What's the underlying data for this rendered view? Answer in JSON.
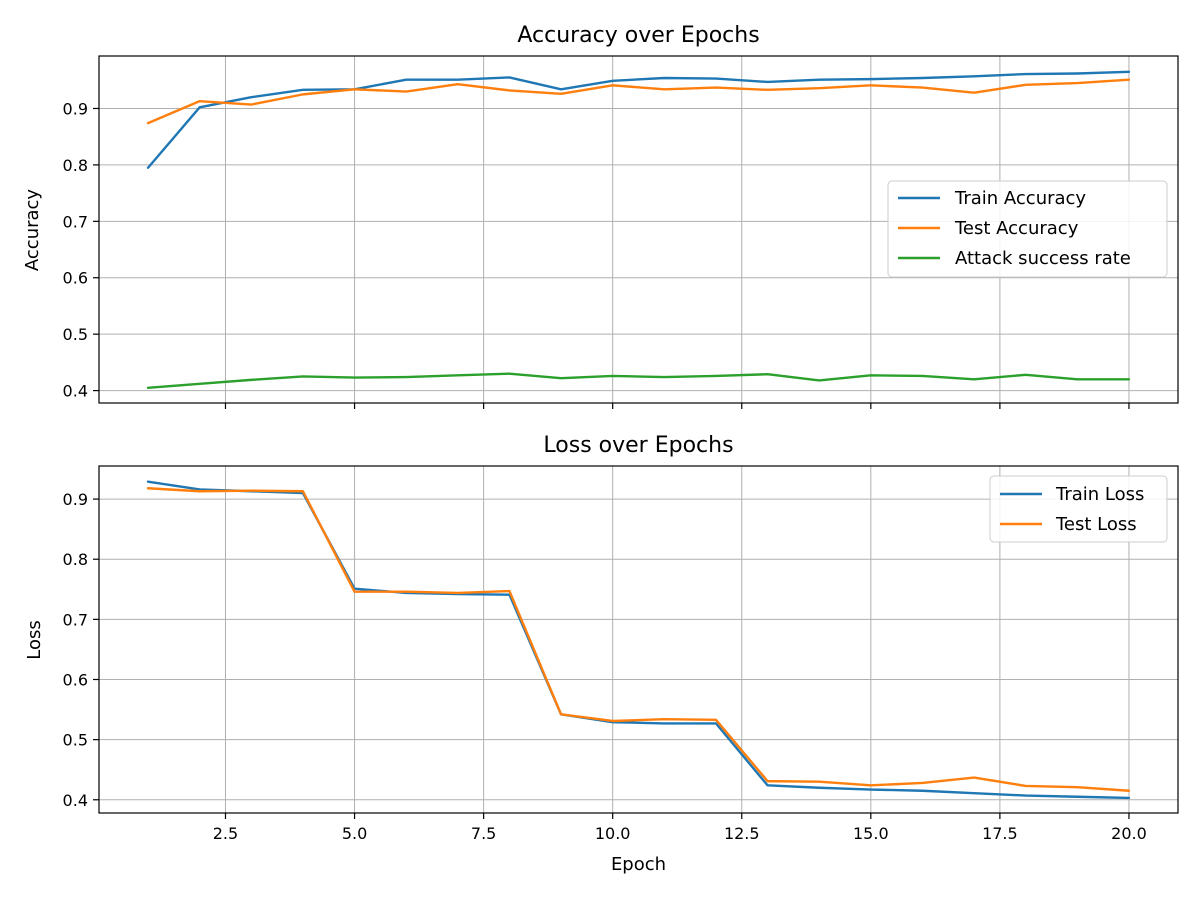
{
  "chart_data": [
    {
      "type": "line",
      "title": "Accuracy over Epochs",
      "xlabel": "",
      "ylabel": "Accuracy",
      "xlim": [
        0.05,
        20.95
      ],
      "ylim": [
        0.378,
        0.993
      ],
      "xticks": [
        2.5,
        5.0,
        7.5,
        10.0,
        12.5,
        15.0,
        17.5,
        20.0
      ],
      "xtick_labels": [
        "",
        "",
        "",
        "",
        "",
        "",
        "",
        ""
      ],
      "yticks": [
        0.4,
        0.5,
        0.6,
        0.7,
        0.8,
        0.9
      ],
      "ytick_labels": [
        "0.4",
        "0.5",
        "0.6",
        "0.7",
        "0.8",
        "0.9"
      ],
      "grid": true,
      "legend": "center-right",
      "x": [
        1,
        2,
        3,
        4,
        5,
        6,
        7,
        8,
        9,
        10,
        11,
        12,
        13,
        14,
        15,
        16,
        17,
        18,
        19,
        20
      ],
      "series": [
        {
          "name": "Train Accuracy",
          "color": "#1f77b4",
          "values": [
            0.795,
            0.902,
            0.92,
            0.933,
            0.934,
            0.951,
            0.951,
            0.955,
            0.934,
            0.949,
            0.954,
            0.953,
            0.947,
            0.951,
            0.952,
            0.954,
            0.957,
            0.961,
            0.962,
            0.965
          ]
        },
        {
          "name": "Test Accuracy",
          "color": "#ff7f0e",
          "values": [
            0.874,
            0.913,
            0.907,
            0.925,
            0.934,
            0.93,
            0.943,
            0.932,
            0.926,
            0.941,
            0.934,
            0.937,
            0.933,
            0.936,
            0.941,
            0.937,
            0.928,
            0.942,
            0.945,
            0.951
          ]
        },
        {
          "name": "Attack success rate",
          "color": "#2ca02c",
          "values": [
            0.405,
            0.412,
            0.419,
            0.425,
            0.423,
            0.424,
            0.427,
            0.43,
            0.422,
            0.426,
            0.424,
            0.426,
            0.429,
            0.418,
            0.427,
            0.426,
            0.42,
            0.428,
            0.42,
            0.42
          ]
        }
      ]
    },
    {
      "type": "line",
      "title": "Loss over Epochs",
      "xlabel": "Epoch",
      "ylabel": "Loss",
      "xlim": [
        0.05,
        20.95
      ],
      "ylim": [
        0.378,
        0.955
      ],
      "xticks": [
        2.5,
        5.0,
        7.5,
        10.0,
        12.5,
        15.0,
        17.5,
        20.0
      ],
      "xtick_labels": [
        "2.5",
        "5.0",
        "7.5",
        "10.0",
        "12.5",
        "15.0",
        "17.5",
        "20.0"
      ],
      "yticks": [
        0.4,
        0.5,
        0.6,
        0.7,
        0.8,
        0.9
      ],
      "ytick_labels": [
        "0.4",
        "0.5",
        "0.6",
        "0.7",
        "0.8",
        "0.9"
      ],
      "grid": true,
      "legend": "top-right",
      "x": [
        1,
        2,
        3,
        4,
        5,
        6,
        7,
        8,
        9,
        10,
        11,
        12,
        13,
        14,
        15,
        16,
        17,
        18,
        19,
        20
      ],
      "series": [
        {
          "name": "Train Loss",
          "color": "#1f77b4",
          "values": [
            0.929,
            0.916,
            0.913,
            0.91,
            0.751,
            0.744,
            0.742,
            0.741,
            0.542,
            0.529,
            0.527,
            0.527,
            0.424,
            0.42,
            0.417,
            0.415,
            0.411,
            0.407,
            0.405,
            0.403
          ]
        },
        {
          "name": "Test Loss",
          "color": "#ff7f0e",
          "values": [
            0.918,
            0.913,
            0.914,
            0.913,
            0.746,
            0.746,
            0.744,
            0.747,
            0.542,
            0.531,
            0.534,
            0.533,
            0.431,
            0.43,
            0.424,
            0.428,
            0.437,
            0.423,
            0.421,
            0.415
          ]
        }
      ]
    }
  ]
}
